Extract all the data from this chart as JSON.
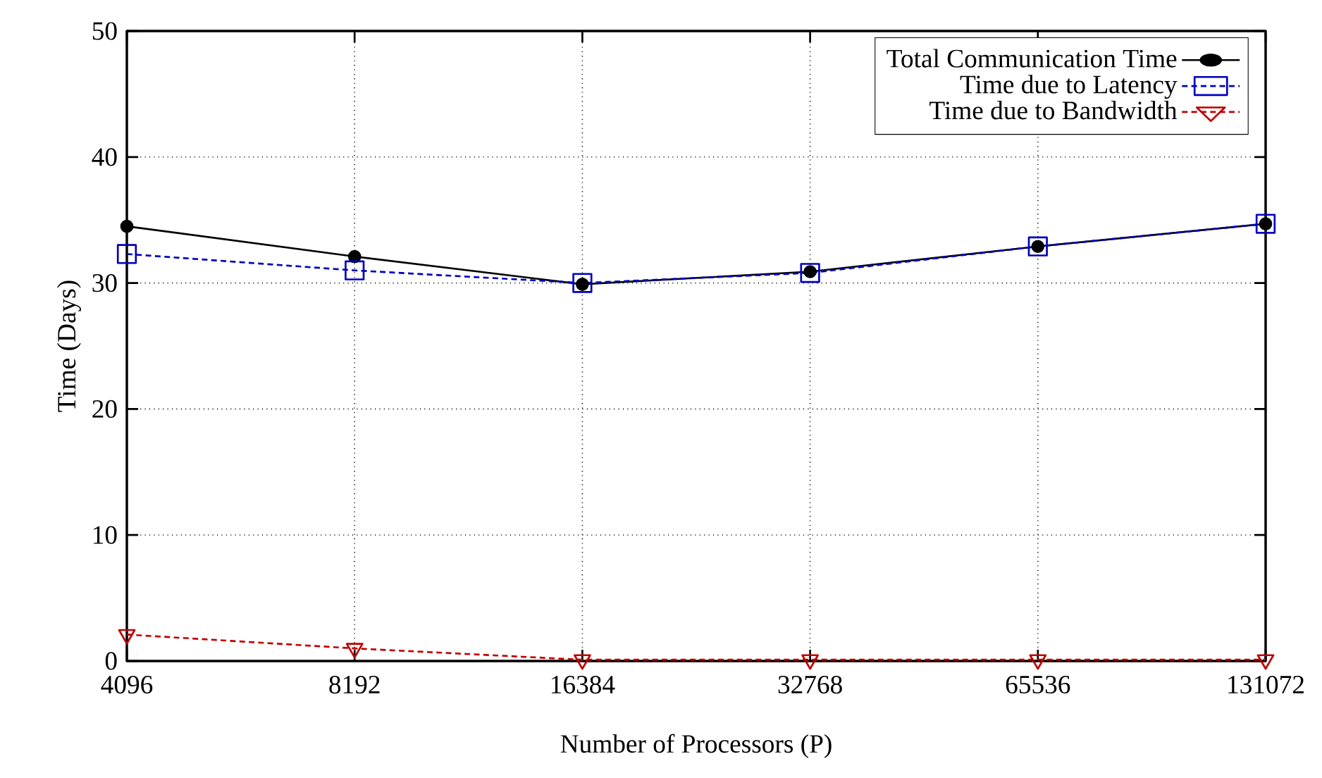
{
  "chart_data": {
    "type": "line",
    "xlabel": "Number of Processors (P)",
    "ylabel": "Time (Days)",
    "categories": [
      "4096",
      "8192",
      "16384",
      "32768",
      "65536",
      "131072"
    ],
    "series": [
      {
        "name": "Total Communication Time",
        "color": "#000000",
        "marker": "circle",
        "line_style": "solid",
        "values": [
          34.5,
          32.1,
          29.9,
          30.9,
          32.9,
          34.7
        ]
      },
      {
        "name": "Time due to Latency",
        "color": "#0000c0",
        "marker": "square",
        "line_style": "dashed",
        "values": [
          32.3,
          31.0,
          30.0,
          30.8,
          32.9,
          34.7
        ]
      },
      {
        "name": "Time due to Bandwidth",
        "color": "#c00000",
        "marker": "triangle",
        "line_style": "dashed",
        "values": [
          2.1,
          1.0,
          0.1,
          0.1,
          0.1,
          0.1
        ]
      }
    ],
    "ylim": [
      0,
      50
    ],
    "yticks": [
      0,
      10,
      20,
      30,
      40,
      50
    ],
    "grid": true,
    "legend": "top right"
  }
}
